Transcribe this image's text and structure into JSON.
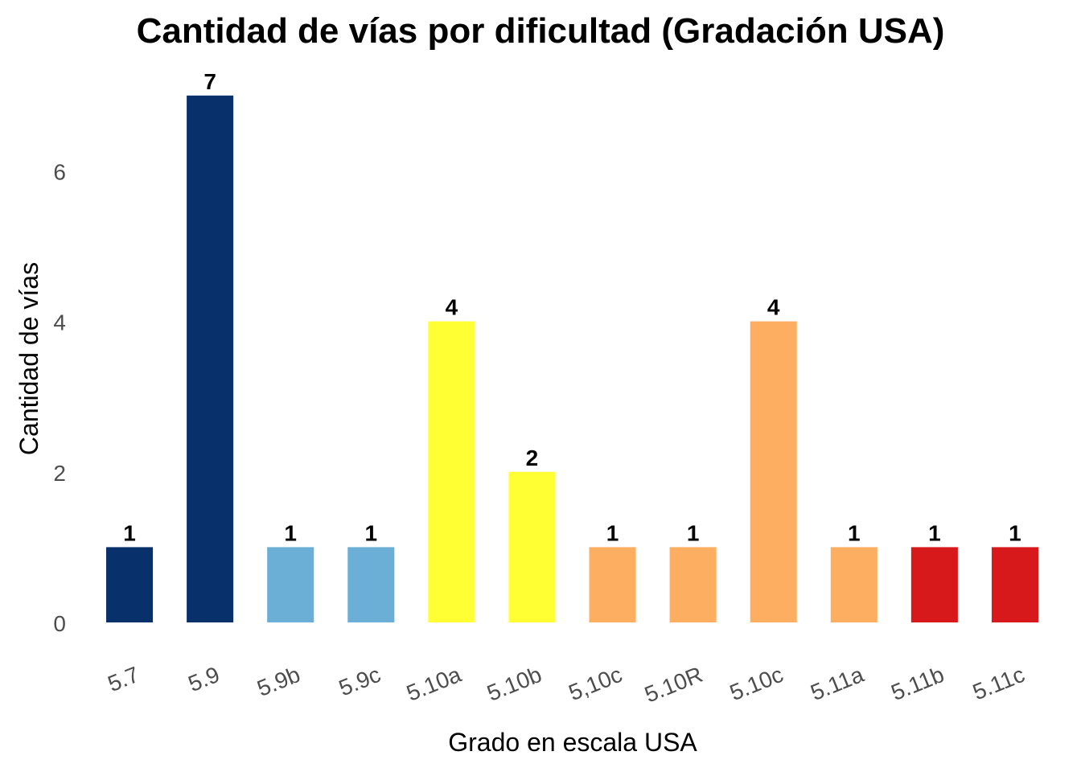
{
  "chart_data": {
    "type": "bar",
    "title": "Cantidad de vías por dificultad (Gradación USA)",
    "xlabel": "Grado en escala USA",
    "ylabel": "Cantidad de vías",
    "categories": [
      "5.7",
      "5.9",
      "5.9b",
      "5.9c",
      "5.10a",
      "5.10b",
      "5,10c",
      "5.10R",
      "5.10c",
      "5.11a",
      "5.11b",
      "5.11c"
    ],
    "values": [
      1,
      7,
      1,
      1,
      4,
      2,
      1,
      1,
      4,
      1,
      1,
      1
    ],
    "colors": [
      "#08306B",
      "#08306B",
      "#6BAED6",
      "#6BAED6",
      "#FFFF33",
      "#FFFF33",
      "#FDAE61",
      "#FDAE61",
      "#FDAE61",
      "#FDAE61",
      "#D7191C",
      "#D7191C"
    ],
    "yticks": [
      0,
      2,
      4,
      6
    ],
    "ylim": [
      0,
      7
    ],
    "grid": false,
    "legend": false,
    "data_labels": true
  }
}
